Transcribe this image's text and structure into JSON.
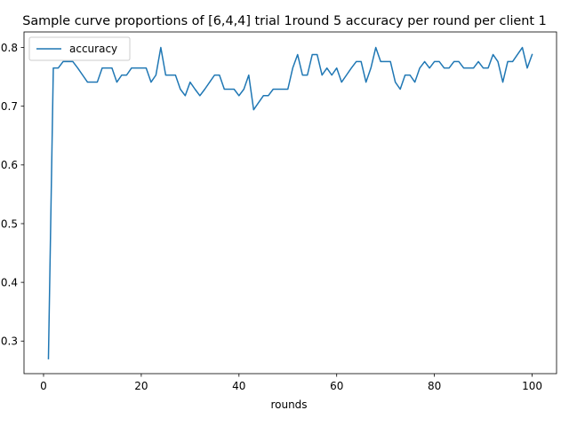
{
  "chart_data": {
    "type": "line",
    "title": "Sample curve proportions of [6,4,4] trial 1round 5 accuracy per round per client 1",
    "xlabel": "rounds",
    "ylabel": "",
    "xlim": [
      -4,
      105
    ],
    "ylim": [
      0.2445,
      0.8265
    ],
    "xticks": [
      0,
      20,
      40,
      60,
      80,
      100
    ],
    "yticks": [
      0.3,
      0.4,
      0.5,
      0.6,
      0.7,
      0.8
    ],
    "ytick_labels": [
      "0.3",
      "0.4",
      "0.5",
      "0.6",
      "0.7",
      "0.8"
    ],
    "grid": false,
    "legend_position": "upper-left",
    "series": [
      {
        "name": "accuracy",
        "color": "#1f77b4",
        "x": [
          1,
          2,
          3,
          4,
          5,
          6,
          7,
          8,
          9,
          10,
          11,
          12,
          13,
          14,
          15,
          16,
          17,
          18,
          19,
          20,
          21,
          22,
          23,
          24,
          25,
          26,
          27,
          28,
          29,
          30,
          31,
          32,
          33,
          34,
          35,
          36,
          37,
          38,
          39,
          40,
          41,
          42,
          43,
          44,
          45,
          46,
          47,
          48,
          49,
          50,
          51,
          52,
          53,
          54,
          55,
          56,
          57,
          58,
          59,
          60,
          61,
          62,
          63,
          64,
          65,
          66,
          67,
          68,
          69,
          70,
          71,
          72,
          73,
          74,
          75,
          76,
          77,
          78,
          79,
          80,
          81,
          82,
          83,
          84,
          85,
          86,
          87,
          88,
          89,
          90,
          91,
          92,
          93,
          94,
          95,
          96,
          97,
          98,
          99,
          100
        ],
        "values": [
          0.27,
          0.765,
          0.765,
          0.776,
          0.776,
          0.776,
          0.765,
          0.753,
          0.741,
          0.741,
          0.741,
          0.765,
          0.765,
          0.765,
          0.741,
          0.753,
          0.753,
          0.765,
          0.765,
          0.765,
          0.765,
          0.741,
          0.753,
          0.8,
          0.753,
          0.753,
          0.753,
          0.729,
          0.718,
          0.741,
          0.729,
          0.718,
          0.729,
          0.741,
          0.753,
          0.753,
          0.729,
          0.729,
          0.729,
          0.718,
          0.729,
          0.753,
          0.694,
          0.706,
          0.718,
          0.718,
          0.729,
          0.729,
          0.729,
          0.729,
          0.765,
          0.788,
          0.753,
          0.753,
          0.788,
          0.788,
          0.753,
          0.765,
          0.753,
          0.765,
          0.741,
          0.753,
          0.765,
          0.776,
          0.776,
          0.741,
          0.765,
          0.8,
          0.776,
          0.776,
          0.776,
          0.741,
          0.729,
          0.753,
          0.753,
          0.741,
          0.765,
          0.776,
          0.765,
          0.776,
          0.776,
          0.765,
          0.765,
          0.776,
          0.776,
          0.765,
          0.765,
          0.765,
          0.776,
          0.765,
          0.765,
          0.788,
          0.776,
          0.741,
          0.776,
          0.776,
          0.788,
          0.8,
          0.765,
          0.788
        ]
      }
    ]
  }
}
